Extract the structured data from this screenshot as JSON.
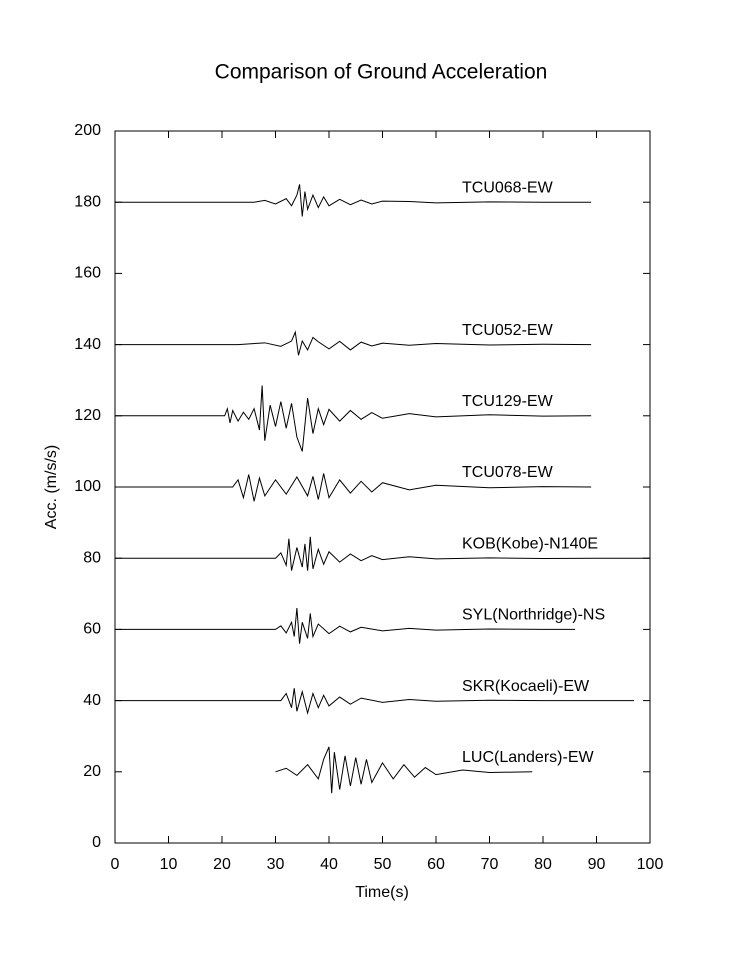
{
  "chart_data": {
    "type": "line",
    "title": "Comparison of Ground Acceleration",
    "x_label": "Time(s)",
    "y_label": "Acc. (m/s/s)",
    "xlim": [
      0,
      100
    ],
    "xticks": [
      0,
      10,
      20,
      30,
      40,
      50,
      60,
      70,
      80,
      90,
      100
    ],
    "ylim": [
      0,
      200
    ],
    "yticks": [
      0,
      20,
      40,
      60,
      80,
      100,
      120,
      140,
      160,
      180,
      200
    ],
    "grid": false,
    "series": [
      {
        "name": "TCU068-EW",
        "color": "#000000",
        "x": [
          0,
          26,
          28,
          30,
          32,
          33,
          34,
          34.5,
          35,
          35.5,
          36,
          37,
          38,
          39,
          40,
          42,
          44,
          46,
          48,
          50,
          55,
          60,
          70,
          80,
          89
        ],
        "values": [
          180,
          180,
          180.5,
          179.5,
          181,
          179,
          182,
          185,
          176,
          183,
          178,
          182,
          178.5,
          181.5,
          179,
          180.8,
          179.3,
          180.6,
          179.5,
          180.3,
          180.2,
          179.8,
          180.1,
          180,
          180
        ]
      },
      {
        "name": "TCU052-EW",
        "color": "#000000",
        "x": [
          0,
          23,
          28,
          31,
          33,
          33.7,
          34.3,
          35,
          36,
          37,
          38,
          40,
          42,
          44,
          46,
          48,
          50,
          55,
          60,
          70,
          80,
          89
        ],
        "values": [
          140,
          140,
          140.5,
          139.5,
          141,
          143.5,
          137,
          141,
          138.5,
          142,
          140.8,
          138.8,
          140.9,
          138.5,
          140.7,
          139.6,
          140.4,
          139.8,
          140.3,
          139.9,
          140.1,
          140
        ]
      },
      {
        "name": "TCU129-EW",
        "color": "#000000",
        "x": [
          0,
          20.5,
          21,
          21.5,
          22,
          23,
          24,
          25,
          26,
          27,
          27.5,
          28,
          29,
          30,
          31,
          32,
          33,
          34,
          35,
          36,
          37,
          38,
          39,
          40,
          42,
          44,
          46,
          48,
          50,
          55,
          60,
          70,
          80,
          89
        ],
        "values": [
          120,
          120,
          122,
          118,
          121.5,
          118.5,
          121,
          119,
          122,
          116,
          128.5,
          113,
          123,
          117,
          124,
          116.5,
          123.5,
          114,
          110,
          125,
          115,
          122,
          117.5,
          121.8,
          118.5,
          121.5,
          119,
          120.9,
          119.3,
          120.6,
          119.7,
          120.3,
          119.9,
          120
        ]
      },
      {
        "name": "TCU078-EW",
        "color": "#000000",
        "x": [
          0,
          22,
          23,
          24,
          25,
          26,
          27,
          28,
          30,
          32,
          34,
          36,
          37,
          38,
          39,
          40,
          42,
          44,
          46,
          48,
          50,
          55,
          60,
          70,
          80,
          89
        ],
        "values": [
          100,
          100,
          102,
          97,
          103.5,
          96,
          102.5,
          97.5,
          102,
          98,
          102.8,
          97.5,
          103,
          96.5,
          103.8,
          97,
          102,
          98.3,
          101.6,
          98.6,
          101.2,
          99.2,
          100.5,
          99.8,
          100.1,
          100
        ]
      },
      {
        "name": "KOB(Kobe)-N140E",
        "color": "#000000",
        "x": [
          0,
          30,
          31,
          32,
          32.5,
          33,
          34,
          35,
          35.5,
          36,
          36.5,
          37,
          38,
          39,
          40,
          42,
          44,
          46,
          48,
          50,
          55,
          60,
          70,
          80,
          90,
          100
        ],
        "values": [
          80,
          80,
          81.5,
          78,
          85.5,
          76.5,
          83,
          77.5,
          84,
          76.5,
          86,
          77,
          82.5,
          78.3,
          81.8,
          78.9,
          81.2,
          79.3,
          80.7,
          79.6,
          80.4,
          79.8,
          80.1,
          79.9,
          80,
          80
        ]
      },
      {
        "name": "SYL(Northridge)-NS",
        "color": "#000000",
        "x": [
          0,
          30,
          31,
          32,
          33,
          33.5,
          34,
          34.5,
          35,
          36,
          36.5,
          37,
          38,
          40,
          42,
          44,
          46,
          50,
          55,
          60,
          70,
          80,
          86
        ],
        "values": [
          60,
          60,
          61,
          59,
          62,
          58,
          66,
          56,
          62,
          57.5,
          64.5,
          58,
          61.5,
          58.8,
          60.9,
          59.3,
          60.6,
          59.6,
          60.3,
          59.8,
          60.1,
          60,
          60
        ]
      },
      {
        "name": "SKR(Kocaeli)-EW",
        "color": "#000000",
        "x": [
          0,
          31,
          32,
          33,
          33.5,
          34,
          35,
          36,
          37,
          38,
          39,
          40,
          42,
          44,
          46,
          50,
          55,
          60,
          70,
          80,
          97
        ],
        "values": [
          40,
          40,
          42,
          38,
          43.5,
          37,
          42.5,
          36.5,
          42,
          38,
          41.5,
          38.5,
          41,
          39,
          40.7,
          39.5,
          40.3,
          39.8,
          40.1,
          40,
          40
        ]
      },
      {
        "name": "LUC(Landers)-EW",
        "color": "#000000",
        "x": [
          30,
          32,
          34,
          36,
          38,
          39,
          40,
          40.5,
          41,
          42,
          43,
          44,
          45,
          46,
          47,
          48,
          50,
          52,
          54,
          56,
          58,
          60,
          65,
          70,
          78
        ],
        "values": [
          20,
          21,
          19,
          22,
          18,
          23.5,
          27,
          14,
          25.5,
          15,
          24.5,
          16,
          24,
          16.5,
          23.5,
          17,
          22.5,
          18,
          22,
          18.5,
          21.2,
          19.2,
          20.5,
          19.8,
          20
        ]
      }
    ]
  }
}
